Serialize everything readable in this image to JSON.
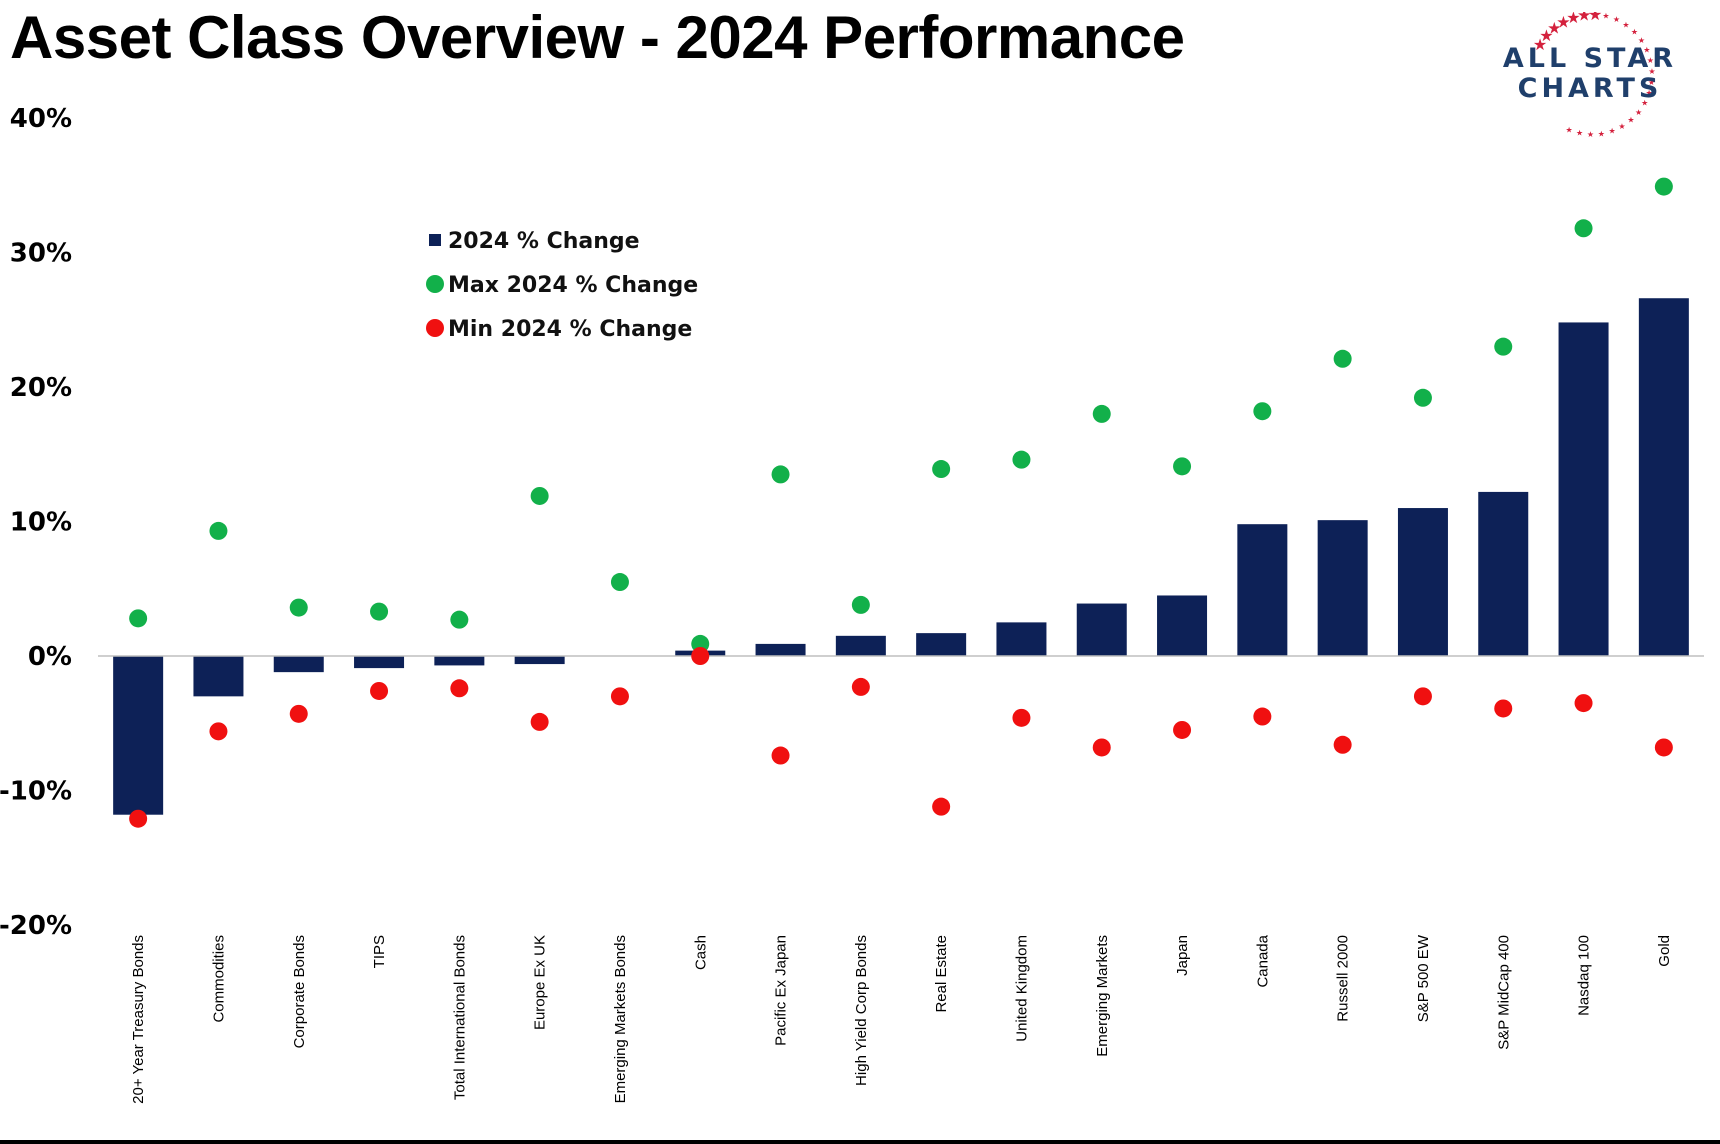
{
  "title": "Asset Class Overview - 2024 Performance",
  "logo": {
    "line1": "ALL STAR",
    "line2": "CHARTS"
  },
  "colors": {
    "bar": "#0d2157",
    "max": "#12b04a",
    "min": "#f01010",
    "logo_text": "#1f3f6b",
    "logo_star": "#d4213d"
  },
  "chart_data": {
    "type": "bar",
    "title": "Asset Class Overview - 2024 Performance",
    "ylim": [
      -20,
      40
    ],
    "y_ticks": [
      {
        "value": 40,
        "label": "40%"
      },
      {
        "value": 30,
        "label": "30%"
      },
      {
        "value": 20,
        "label": "20%"
      },
      {
        "value": 10,
        "label": "10%"
      },
      {
        "value": 0,
        "label": "0%"
      },
      {
        "value": -10,
        "label": "-10%"
      },
      {
        "value": -20,
        "label": "-20%"
      }
    ],
    "grid": false,
    "legend_position": "top-left",
    "categories": [
      "20+ Year Treasury Bonds",
      "Commodities",
      "Corporate Bonds",
      "TIPS",
      "Total International Bonds",
      "Europe Ex UK",
      "Emerging Markets Bonds",
      "Cash",
      "Pacific Ex Japan",
      "High Yield Corp Bonds",
      "Real Estate",
      "United Kingdom",
      "Emerging Markets",
      "Japan",
      "Canada",
      "Russell 2000",
      "S&P 500 EW",
      "S&P MidCap 400",
      "Nasdaq 100",
      "Gold"
    ],
    "series": [
      {
        "name": "2024 % Change",
        "type": "bar",
        "values": [
          -11.8,
          -3.0,
          -1.2,
          -0.9,
          -0.7,
          -0.6,
          0.0,
          0.4,
          0.9,
          1.5,
          1.7,
          2.5,
          3.9,
          4.5,
          9.8,
          10.1,
          11.0,
          12.2,
          24.8,
          26.6
        ]
      },
      {
        "name": "Max 2024 % Change",
        "type": "scatter",
        "values": [
          2.8,
          9.3,
          3.6,
          3.3,
          2.7,
          11.9,
          5.5,
          0.9,
          13.5,
          3.8,
          13.9,
          14.6,
          18.0,
          14.1,
          18.2,
          22.1,
          19.2,
          23.0,
          31.8,
          34.9
        ]
      },
      {
        "name": "Min 2024 % Change",
        "type": "scatter",
        "values": [
          -12.1,
          -5.6,
          -4.3,
          -2.6,
          -2.4,
          -4.9,
          -3.0,
          0.0,
          -7.4,
          -2.3,
          -11.2,
          -4.6,
          -6.8,
          -5.5,
          -4.5,
          -6.6,
          -3.0,
          -3.9,
          -3.5,
          -6.8
        ]
      }
    ]
  }
}
